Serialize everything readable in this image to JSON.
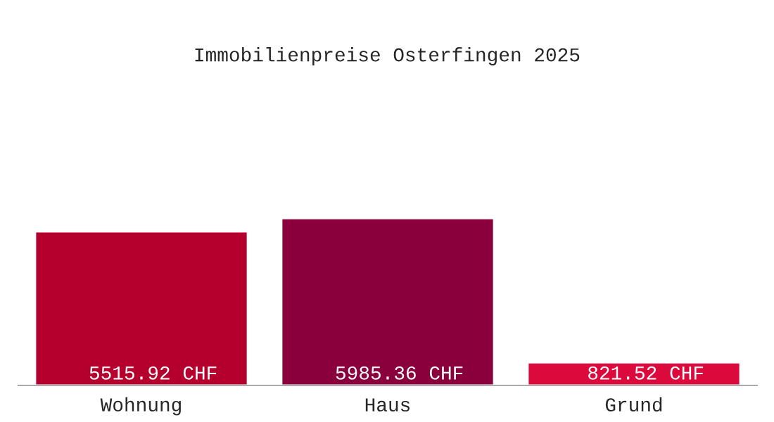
{
  "chart_data": {
    "type": "bar",
    "title": "Immobilienpreise Osterfingen 2025",
    "categories": [
      "Wohnung",
      "Haus",
      "Grund"
    ],
    "values": [
      5515.92,
      5985.36,
      821.52
    ],
    "colors": [
      "#b5002e",
      "#8a003c",
      "#dc0a3c"
    ],
    "value_labels": [
      "5515.92 CHF",
      "5985.36 CHF",
      "821.52 CHF"
    ],
    "grid": false,
    "legend": false,
    "tick_labels": "x"
  }
}
